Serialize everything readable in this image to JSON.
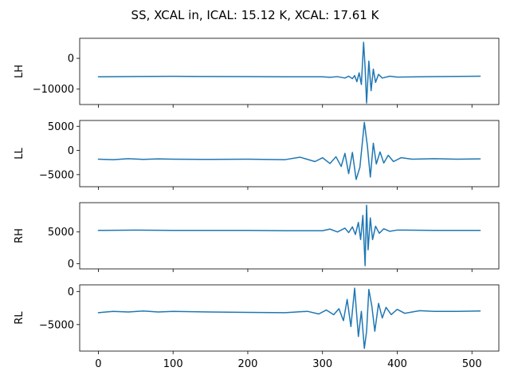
{
  "chart_data": {
    "type": "line",
    "title": "SS, XCAL in, ICAL: 15.12 K, XCAL: 17.61 K",
    "x_range": [
      -25,
      536
    ],
    "x_ticks": [
      0,
      100,
      200,
      300,
      400,
      500
    ],
    "x_tick_labels": [
      "0",
      "100",
      "200",
      "300",
      "400",
      "500"
    ],
    "line_color": "#1f77b4",
    "grid": false,
    "panels": [
      {
        "ylabel": "LH",
        "ylim": [
          -15000,
          6500
        ],
        "y_ticks": [
          0,
          -10000
        ],
        "y_tick_labels": [
          "0",
          "−10000"
        ],
        "series": {
          "x": [
            0,
            50,
            100,
            150,
            200,
            250,
            300,
            310,
            320,
            330,
            335,
            340,
            343,
            346,
            349,
            352,
            355,
            357,
            359,
            362,
            365,
            368,
            371,
            375,
            380,
            390,
            400,
            450,
            511
          ],
          "values": [
            -6000,
            -5900,
            -5850,
            -5900,
            -5950,
            -6000,
            -6000,
            -6150,
            -5950,
            -6400,
            -5800,
            -6600,
            -5600,
            -7600,
            -4700,
            -8500,
            5200,
            -3000,
            -14500,
            -900,
            -10500,
            -3500,
            -7800,
            -5200,
            -6400,
            -5800,
            -6100,
            -5950,
            -5800
          ]
        }
      },
      {
        "ylabel": "LL",
        "ylim": [
          -7500,
          6200
        ],
        "y_ticks": [
          5000,
          0,
          -5000
        ],
        "y_tick_labels": [
          "5000",
          "0",
          "−5000"
        ],
        "series": {
          "x": [
            0,
            20,
            40,
            60,
            80,
            100,
            150,
            200,
            250,
            270,
            290,
            300,
            310,
            318,
            325,
            330,
            335,
            340,
            345,
            350,
            356,
            360,
            364,
            368,
            372,
            377,
            382,
            388,
            395,
            405,
            420,
            450,
            480,
            511
          ],
          "values": [
            -1800,
            -1900,
            -1700,
            -1850,
            -1750,
            -1800,
            -1850,
            -1800,
            -1900,
            -1400,
            -2300,
            -1500,
            -2700,
            -1300,
            -3300,
            -600,
            -4800,
            -400,
            -6000,
            -3500,
            5800,
            1000,
            -5500,
            1500,
            -2800,
            -300,
            -2600,
            -1000,
            -2300,
            -1500,
            -1800,
            -1700,
            -1800,
            -1750
          ]
        }
      },
      {
        "ylabel": "RH",
        "ylim": [
          -800,
          9600
        ],
        "y_ticks": [
          5000,
          0
        ],
        "y_tick_labels": [
          "5000",
          "0"
        ],
        "series": {
          "x": [
            0,
            50,
            100,
            150,
            200,
            250,
            300,
            310,
            320,
            330,
            335,
            340,
            344,
            348,
            351,
            354,
            357,
            359,
            361,
            364,
            367,
            371,
            376,
            382,
            390,
            400,
            450,
            511
          ],
          "values": [
            5250,
            5300,
            5250,
            5250,
            5250,
            5200,
            5200,
            5450,
            5000,
            5600,
            4900,
            5800,
            4600,
            6500,
            3800,
            7600,
            -300,
            9200,
            2200,
            7200,
            3800,
            5900,
            4800,
            5500,
            5100,
            5300,
            5250,
            5250
          ]
        }
      },
      {
        "ylabel": "RL",
        "ylim": [
          -9000,
          1000
        ],
        "y_ticks": [
          0,
          -5000
        ],
        "y_tick_labels": [
          "0",
          "−5000"
        ],
        "series": {
          "x": [
            0,
            20,
            40,
            60,
            80,
            100,
            150,
            200,
            250,
            280,
            295,
            305,
            315,
            322,
            328,
            333,
            338,
            343,
            348,
            352,
            356,
            359,
            362,
            366,
            370,
            375,
            380,
            385,
            392,
            400,
            410,
            430,
            450,
            480,
            511
          ],
          "values": [
            -3200,
            -3000,
            -3100,
            -2950,
            -3100,
            -3000,
            -3100,
            -3150,
            -3200,
            -3000,
            -3400,
            -2800,
            -3500,
            -2600,
            -4400,
            -1200,
            -5300,
            500,
            -6800,
            -3000,
            -8600,
            -6000,
            300,
            -2200,
            -6000,
            -1800,
            -4000,
            -2400,
            -3500,
            -2700,
            -3300,
            -2900,
            -3000,
            -3000,
            -2950
          ]
        }
      }
    ]
  }
}
